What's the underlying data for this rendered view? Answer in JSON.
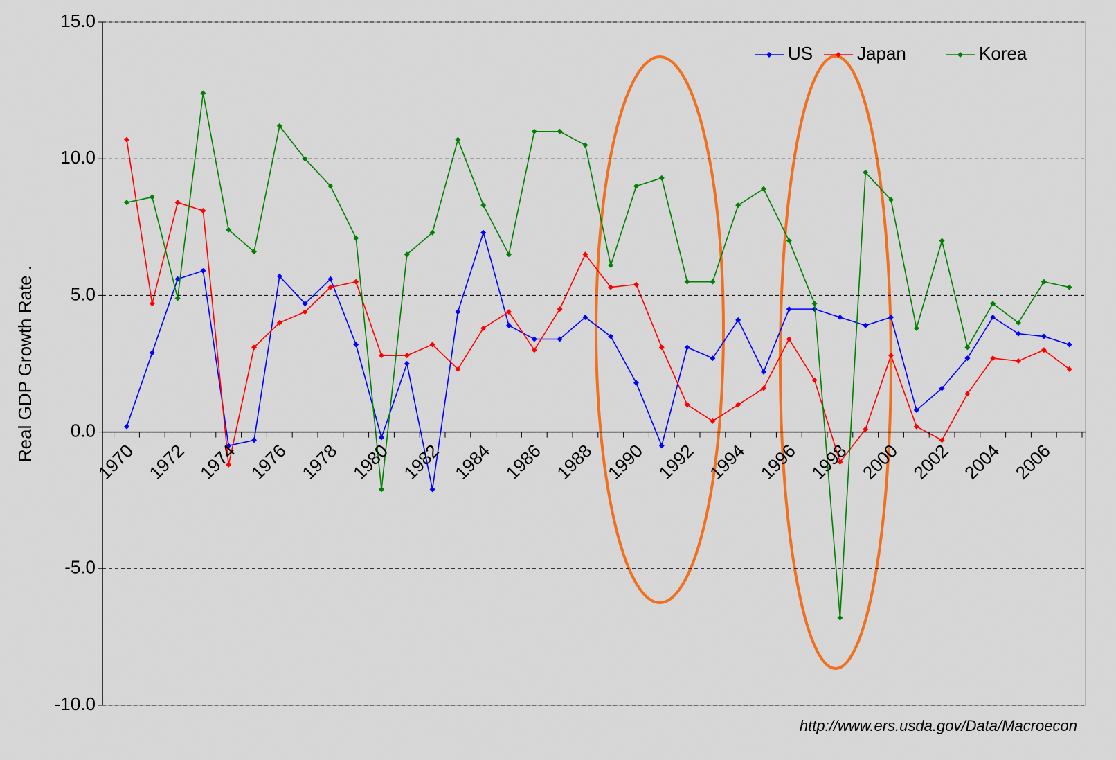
{
  "chart_data": {
    "type": "line",
    "y_label": "Real GDP Growth Rate .",
    "source": "http://www.ers.usda.gov/Data/Macroecon",
    "categories": [
      "1970",
      null,
      "1972",
      null,
      "1974",
      null,
      "1976",
      null,
      "1978",
      null,
      "1980",
      null,
      "1982",
      null,
      "1984",
      null,
      "1986",
      null,
      "1988",
      null,
      "1990",
      null,
      "1992",
      null,
      "1994",
      null,
      "1996",
      null,
      "1998",
      null,
      "2000",
      null,
      "2002",
      null,
      "2004",
      null,
      "2006",
      null
    ],
    "series": [
      {
        "name": "US",
        "color": "#0000ff",
        "values": [
          0.2,
          2.9,
          5.6,
          5.9,
          -0.5,
          -0.3,
          5.7,
          4.7,
          5.6,
          3.2,
          -0.2,
          2.5,
          -2.1,
          4.4,
          7.3,
          3.9,
          3.4,
          3.4,
          4.2,
          3.5,
          1.8,
          -0.5,
          3.1,
          2.7,
          4.1,
          2.2,
          4.5,
          4.5,
          4.2,
          3.9,
          4.2,
          0.8,
          1.6,
          2.7,
          4.2,
          3.6,
          3.5,
          3.2
        ]
      },
      {
        "name": "Japan",
        "color": "#ff0000",
        "values": [
          10.7,
          4.7,
          8.4,
          8.1,
          -1.2,
          3.1,
          4.0,
          4.4,
          5.3,
          5.5,
          2.8,
          2.8,
          3.2,
          2.3,
          3.8,
          4.4,
          3.0,
          4.5,
          6.5,
          5.3,
          5.4,
          3.1,
          1.0,
          0.4,
          1.0,
          1.6,
          3.4,
          1.9,
          -1.1,
          0.1,
          2.8,
          0.2,
          -0.3,
          1.4,
          2.7,
          2.6,
          3.0,
          2.3
        ]
      },
      {
        "name": "Korea",
        "color": "#008000",
        "values": [
          8.4,
          8.6,
          4.9,
          12.4,
          7.4,
          6.6,
          11.2,
          10.0,
          9.0,
          7.1,
          -2.1,
          6.5,
          7.3,
          10.7,
          8.3,
          6.5,
          11.0,
          11.0,
          10.5,
          6.1,
          9.0,
          9.3,
          5.5,
          5.5,
          8.3,
          8.9,
          7.0,
          4.7,
          -6.8,
          9.5,
          8.5,
          3.8,
          7.0,
          3.1,
          4.7,
          4.0,
          5.5,
          5.3
        ]
      }
    ],
    "ylim": [
      -10,
      15
    ],
    "yticks": [
      {
        "value": -10,
        "label": "-10.0"
      },
      {
        "value": -5,
        "label": "-5.0"
      },
      {
        "value": 0,
        "label": "0.0"
      },
      {
        "value": 5,
        "label": "5.0"
      },
      {
        "value": 10,
        "label": "10.0"
      },
      {
        "value": 15,
        "label": "15.0"
      }
    ],
    "grid": true,
    "legend": "top-right"
  }
}
